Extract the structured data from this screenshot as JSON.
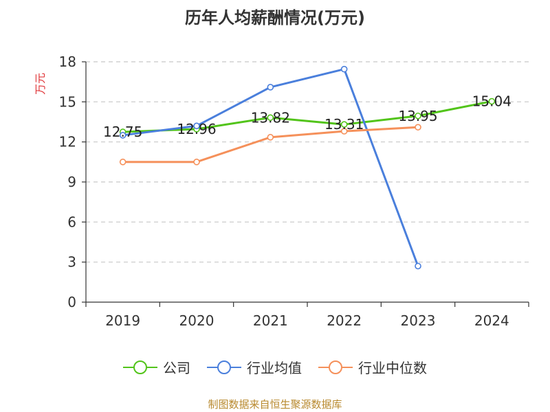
{
  "chart_data": {
    "type": "line",
    "title": "历年人均薪酬情况(万元)",
    "ylabel": "万元",
    "xlabel": "",
    "categories": [
      "2019",
      "2020",
      "2021",
      "2022",
      "2023",
      "2024"
    ],
    "ylim": [
      0,
      18
    ],
    "yticks": [
      0,
      3,
      6,
      9,
      12,
      15,
      18
    ],
    "grid": true,
    "legend_position": "bottom",
    "series": [
      {
        "name": "公司",
        "color": "#52c41a",
        "values": [
          12.75,
          12.96,
          13.82,
          13.31,
          13.95,
          15.04
        ],
        "labels": [
          "12.75",
          "12.96",
          "13.82",
          "13.31",
          "13.95",
          "15.04"
        ]
      },
      {
        "name": "行业均值",
        "color": "#4a7fdc",
        "values": [
          12.5,
          13.2,
          16.1,
          17.45,
          2.7,
          null
        ],
        "labels": []
      },
      {
        "name": "行业中位数",
        "color": "#f5905a",
        "values": [
          10.5,
          10.5,
          12.35,
          12.8,
          13.1,
          null
        ],
        "labels": []
      }
    ]
  },
  "footer": "制图数据来自恒生聚源数据库",
  "colors": {
    "ylabel": "#e0383b",
    "footer": "#b8892e",
    "grid": "#c8c8c8",
    "axis": "#333333"
  }
}
